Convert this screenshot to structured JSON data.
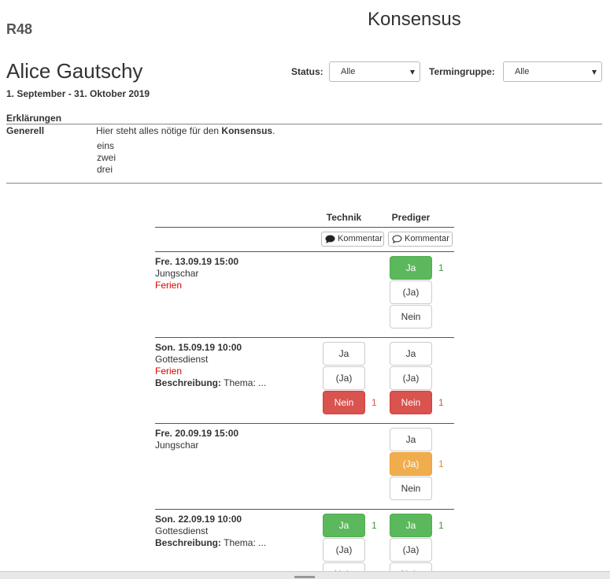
{
  "header": {
    "code": "R48",
    "title": "Konsensus"
  },
  "person": {
    "name": "Alice Gautschy",
    "period": "1. September - 31. Oktober 2019"
  },
  "filters": [
    {
      "label": "Status:",
      "value": "Alle"
    },
    {
      "label": "Termingruppe:",
      "value": "Alle"
    }
  ],
  "explanations": {
    "heading": "Erklärungen",
    "label": "Generell",
    "text_before": "Hier steht alles nötige für den ",
    "text_bold": "Konsensus",
    "text_after": ".",
    "items": [
      "eins",
      "zwei",
      "drei"
    ]
  },
  "table": {
    "columns": [
      {
        "name": "Technik",
        "comment": "Kommentar",
        "icon": "filled"
      },
      {
        "name": "Prediger",
        "comment": "Kommentar",
        "icon": "outline"
      }
    ],
    "options": [
      "Ja",
      "(Ja)",
      "Nein"
    ],
    "events": [
      {
        "date": "Fre. 13.09.19 15:00",
        "type": "Jungschar",
        "note": "Ferien",
        "cells": [
          null,
          {
            "selected": 0,
            "count": 1
          }
        ]
      },
      {
        "date": "Son. 15.09.19 10:00",
        "type": "Gottesdienst",
        "note": "Ferien",
        "description_label": "Beschreibung:",
        "description": "Thema: ...",
        "cells": [
          {
            "selected": 2,
            "count": 1
          },
          {
            "selected": 2,
            "count": 1
          }
        ]
      },
      {
        "date": "Fre. 20.09.19 15:00",
        "type": "Jungschar",
        "cells": [
          null,
          {
            "selected": 1,
            "count": 1
          }
        ]
      },
      {
        "date": "Son. 22.09.19 10:00",
        "type": "Gottesdienst",
        "description_label": "Beschreibung:",
        "description": "Thema: ...",
        "cells": [
          {
            "selected": 0,
            "count": 1
          },
          {
            "selected": 0,
            "count": 1
          }
        ]
      }
    ]
  }
}
